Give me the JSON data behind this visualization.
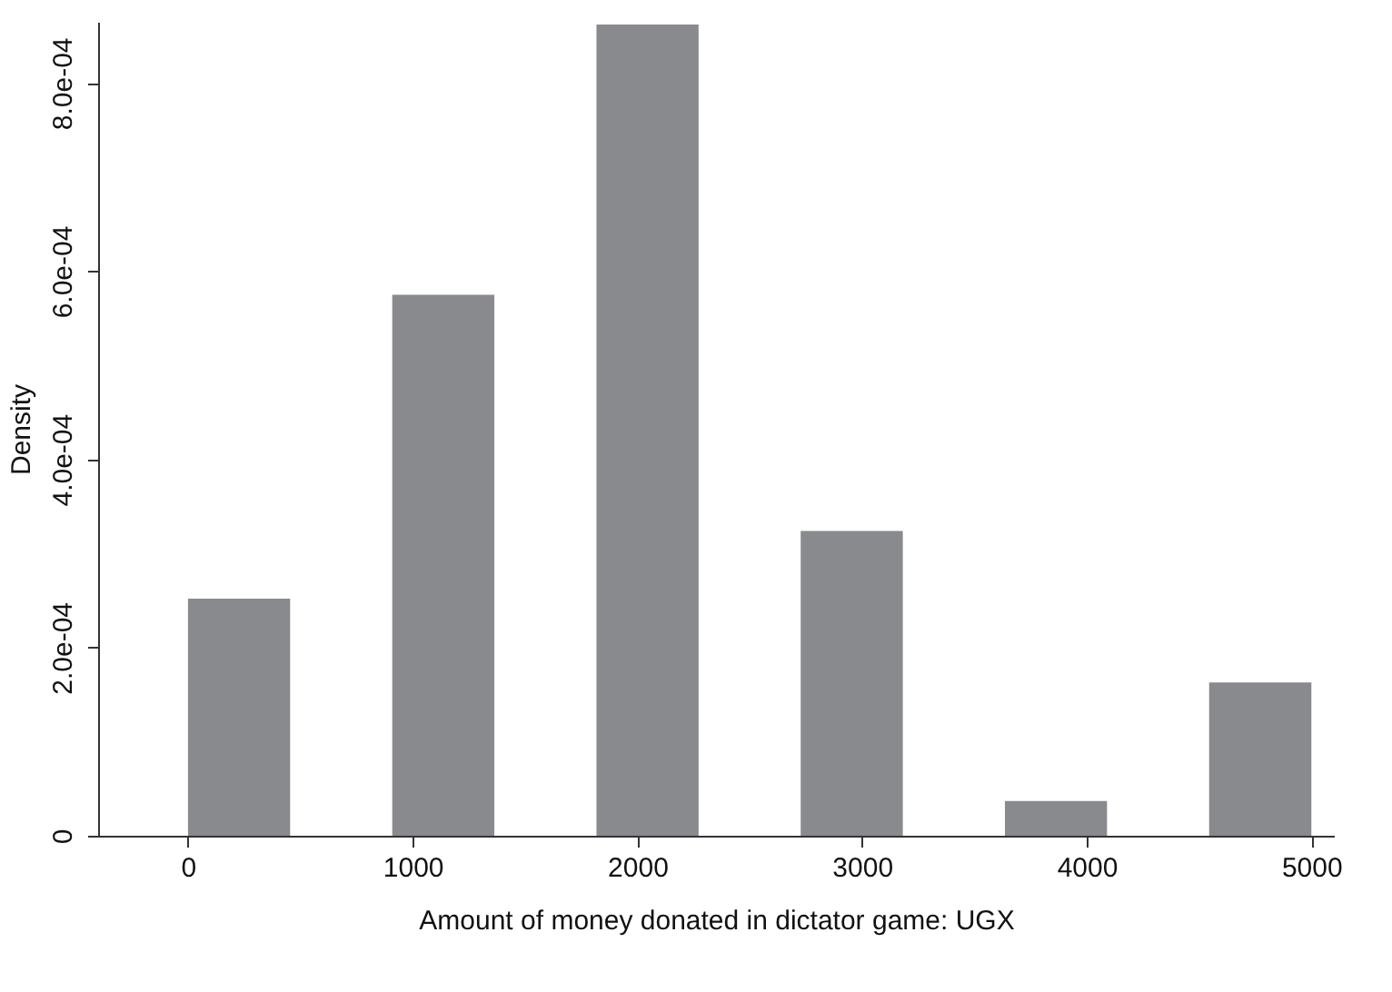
{
  "chart_data": {
    "type": "histogram",
    "xlabel": "Amount of money donated in dictator game: UGX",
    "ylabel": "Density",
    "bins": [
      0,
      454.5,
      909,
      1363.5,
      1818,
      2272.5,
      2727,
      3181.5,
      3636,
      4090.5,
      4545,
      5000
    ],
    "values": [
      0.000252,
      0,
      0.000575,
      0,
      0.000862,
      0,
      0.000324,
      0,
      3.7e-05,
      0,
      0.000163
    ],
    "color": "#898a8e",
    "xlim": [
      -400,
      5100
    ],
    "xticks": [
      0,
      1000,
      2000,
      3000,
      4000,
      5000
    ],
    "ylim": [
      0,
      0.000865
    ],
    "yticks": [
      0,
      {
        "value": 0.0002,
        "label": "2.0e-04"
      },
      {
        "value": 0.0004,
        "label": "4.0e-04"
      },
      {
        "value": 0.0006,
        "label": "6.0e-04"
      },
      {
        "value": 0.0008,
        "label": "8.0e-04"
      }
    ],
    "grid": false
  }
}
